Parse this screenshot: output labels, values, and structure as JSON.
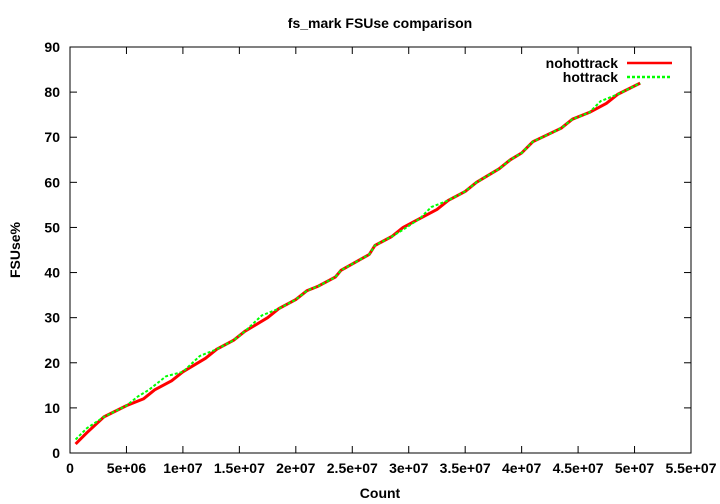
{
  "chart_data": {
    "type": "line",
    "title": "fs_mark FSUse comparison",
    "xlabel": "Count",
    "ylabel": "FSUse%",
    "xlim": [
      0,
      55000000
    ],
    "ylim": [
      0,
      90
    ],
    "x_ticks": [
      0,
      5000000,
      10000000,
      15000000,
      20000000,
      25000000,
      30000000,
      35000000,
      40000000,
      45000000,
      50000000,
      55000000
    ],
    "x_tick_labels": [
      "0",
      "5e+06",
      "1e+07",
      "1.5e+07",
      "2e+07",
      "2.5e+07",
      "3e+07",
      "3.5e+07",
      "4e+07",
      "4.5e+07",
      "5e+07",
      "5.5e+07"
    ],
    "y_ticks": [
      0,
      10,
      20,
      30,
      40,
      50,
      60,
      70,
      80,
      90
    ],
    "y_tick_labels": [
      "0",
      "10",
      "20",
      "30",
      "40",
      "50",
      "60",
      "70",
      "80",
      "90"
    ],
    "grid": false,
    "legend_position": "top-right",
    "series": [
      {
        "name": "nohottrack",
        "color": "#ff0000",
        "style": "solid",
        "x": [
          500000,
          1500000,
          3000000,
          5000000,
          6500000,
          7500000,
          9000000,
          10000000,
          12000000,
          13000000,
          14500000,
          15500000,
          17500000,
          18500000,
          20000000,
          21000000,
          22000000,
          23500000,
          24000000,
          26500000,
          27000000,
          28500000,
          29500000,
          31000000,
          32500000,
          33500000,
          35000000,
          36000000,
          38000000,
          39000000,
          40000000,
          41000000,
          43500000,
          44500000,
          46000000,
          47500000,
          48500000,
          50500000
        ],
        "y": [
          2,
          4.5,
          8,
          10.5,
          12,
          14,
          16,
          18,
          21,
          23,
          25,
          27,
          30,
          32,
          34,
          36,
          37,
          39,
          40.5,
          44,
          46,
          48,
          50,
          52,
          54,
          56,
          58,
          60,
          63,
          65,
          66.5,
          69,
          72,
          74,
          75.5,
          77.5,
          79.5,
          82
        ]
      },
      {
        "name": "hottrack",
        "color": "#00ff00",
        "style": "dashed",
        "x": [
          500000,
          1500000,
          3000000,
          5000000,
          6000000,
          7000000,
          8500000,
          10000000,
          11500000,
          13000000,
          14500000,
          15500000,
          17000000,
          18500000,
          20000000,
          21000000,
          22000000,
          23500000,
          24000000,
          26500000,
          27000000,
          28500000,
          29500000,
          31000000,
          32000000,
          33500000,
          35000000,
          36000000,
          38000000,
          39000000,
          40000000,
          41000000,
          43500000,
          44500000,
          46000000,
          47000000,
          48500000,
          50500000
        ],
        "y": [
          3,
          5.5,
          8,
          10.5,
          12.5,
          14,
          17,
          18,
          21.5,
          23,
          25,
          27,
          30.5,
          32,
          34,
          36,
          37,
          39,
          40.5,
          44,
          46,
          48,
          49.5,
          52,
          54.5,
          56,
          58,
          60,
          63,
          65,
          66.5,
          69,
          72,
          74,
          75.5,
          78,
          79.5,
          82
        ]
      }
    ]
  }
}
